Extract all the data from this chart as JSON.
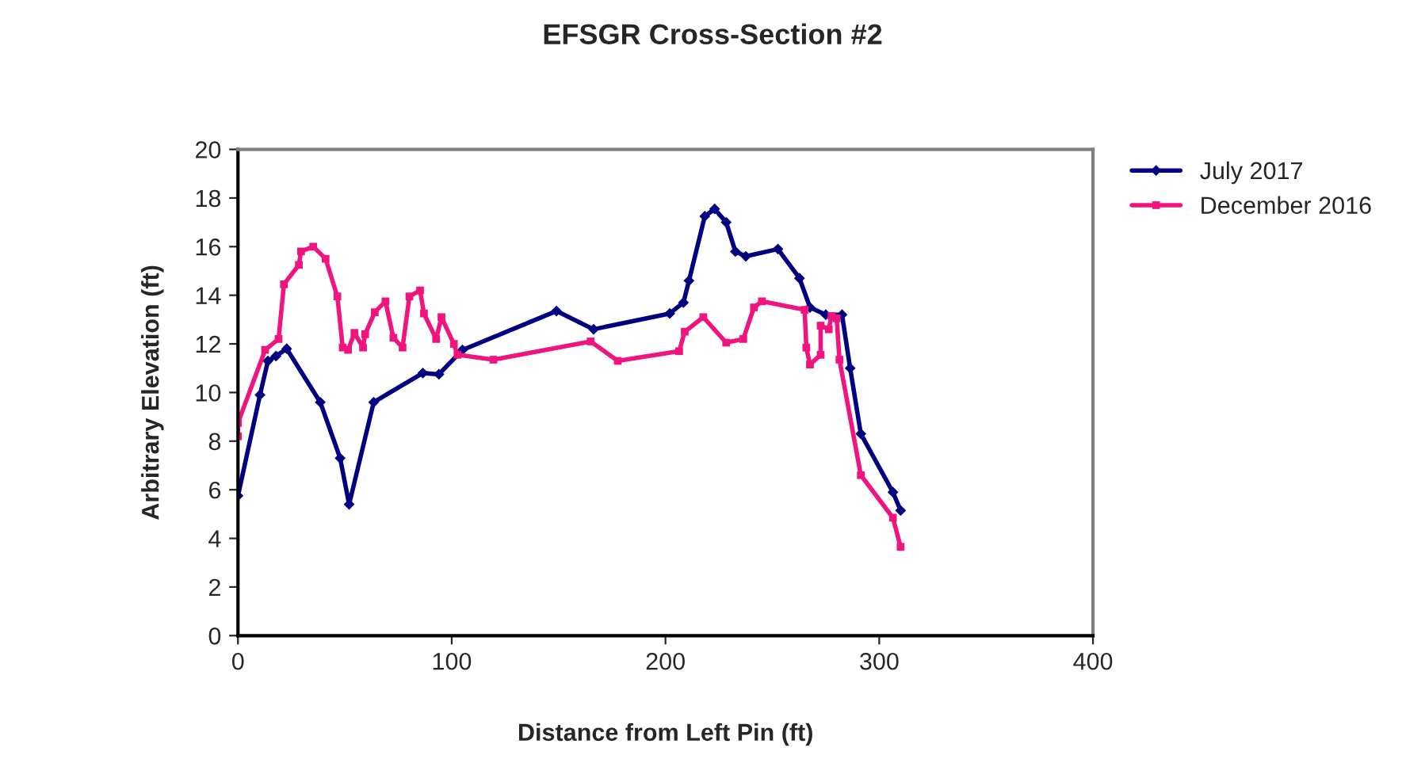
{
  "chart_data": {
    "type": "line",
    "title": "EFSGR Cross-Section #2",
    "xlabel": "Distance from Left Pin (ft)",
    "ylabel": "Arbitrary Elevation (ft)",
    "xlim": [
      0,
      400
    ],
    "xticks": [
      0,
      100,
      200,
      300,
      400
    ],
    "ylim": [
      0,
      20
    ],
    "yticks": [
      0,
      2,
      4,
      6,
      8,
      10,
      12,
      14,
      16,
      18,
      20
    ],
    "grid": false,
    "legend": "top right",
    "line_style": "solid",
    "series": [
      {
        "name": "July 2017",
        "color": "#000080",
        "marker": "diamond",
        "x": [
          0,
          10.3,
          14,
          17.8,
          22.8,
          38.5,
          47.8,
          52,
          63.5,
          86.5,
          94,
          105,
          149,
          166.4,
          202,
          208.4,
          211,
          218.4,
          223,
          228.4,
          232.7,
          237.6,
          252.6,
          262.7,
          267.6,
          275,
          282.6,
          286.4,
          291.4,
          306.4,
          310
        ],
        "values": [
          5.75,
          9.9,
          11.3,
          11.5,
          11.8,
          9.6,
          7.3,
          5.4,
          9.6,
          10.8,
          10.75,
          11.75,
          13.35,
          12.6,
          13.25,
          13.7,
          14.6,
          17.25,
          17.55,
          17.0,
          15.8,
          15.6,
          15.9,
          14.7,
          13.5,
          13.2,
          13.2,
          11.0,
          8.3,
          5.9,
          5.15
        ]
      },
      {
        "name": "December 2016",
        "color": "#f0147f",
        "marker": "square",
        "x": [
          0,
          0,
          12.7,
          19,
          21.5,
          28.5,
          29.5,
          35.2,
          41,
          46.5,
          49,
          51.5,
          54.5,
          58.5,
          59.5,
          64,
          69,
          72.7,
          77,
          80.2,
          85.2,
          87,
          92.7,
          95.2,
          101,
          102.7,
          119.5,
          165,
          177.7,
          206.4,
          209,
          217.7,
          228.4,
          236.4,
          241.4,
          245.1,
          265.1,
          265.9,
          267.6,
          272.6,
          272.6,
          276.4,
          277.7,
          280.1,
          281.4,
          291.4,
          306.4,
          310
        ],
        "values": [
          8.2,
          8.75,
          11.75,
          12.2,
          14.45,
          15.25,
          15.8,
          16.0,
          15.5,
          13.95,
          11.85,
          11.75,
          12.45,
          11.85,
          12.4,
          13.3,
          13.75,
          12.25,
          11.85,
          13.95,
          14.2,
          13.25,
          12.2,
          13.1,
          12.0,
          11.55,
          11.35,
          12.1,
          11.3,
          11.7,
          12.5,
          13.1,
          12.05,
          12.2,
          13.5,
          13.75,
          13.4,
          11.85,
          11.15,
          11.55,
          12.75,
          12.6,
          13.15,
          13.05,
          11.35,
          6.6,
          4.85,
          3.65
        ]
      }
    ]
  }
}
